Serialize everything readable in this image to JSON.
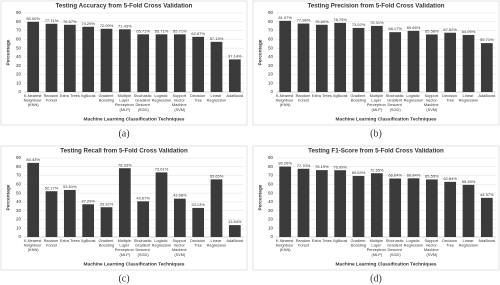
{
  "chart_data": [
    {
      "type": "bar",
      "title": "Testing Accuracy from 5-Fold Cross Validation",
      "x_label": "Machine Learning Classification Techniques",
      "y_label": "Percentage",
      "panel_label": "(a)",
      "categories": [
        "K-Nearest Neighbour (KNN)",
        "Random Forest",
        "Extra Trees",
        "XgBoost",
        "Gradient Boosting",
        "Multiple Layer Perceptron (MLP)",
        "Stochastic Gradient Descent (SGD)",
        "Logistic Regression",
        "Support Vector Machine (SVM)",
        "Decision Tree",
        "Linear Regression",
        "AdaBoost"
      ],
      "values": [
        80.0,
        77.71,
        76.57,
        74.29,
        72.0,
        71.43,
        65.71,
        65.71,
        65.71,
        62.87,
        57.15,
        37.14
      ],
      "value_labels": [
        "80.00%",
        "77.71%",
        "76.57%",
        "74.29%",
        "72.00%",
        "71.43%",
        "65.71%",
        "65.71%",
        "65.71%",
        "62.87%",
        "57.15%",
        "37.14%"
      ],
      "color": "#3b3b3b",
      "ylim": [
        0,
        90
      ],
      "yticks": [
        0,
        10,
        20,
        30,
        40,
        50,
        60,
        70,
        80,
        90
      ],
      "grid": true
    },
    {
      "type": "bar",
      "title": "Testing Precision from 5-Fold Cross Validation",
      "x_label": "Machine Learning Classification Techniques",
      "y_label": "Percentage",
      "panel_label": "(b)",
      "categories": [
        "K-Nearest Neighbour (KNN)",
        "Random Forest",
        "Extra Trees",
        "XgBoost",
        "Gradient Boosting",
        "Multiple Layer Perceptron (MLP)",
        "Stochastic Gradient Descent (SGD)",
        "Logistic Regression",
        "Support Vector Machine (SVM)",
        "Decision Tree",
        "Linear Regression",
        "AdaBoost"
      ],
      "values": [
        81.07,
        77.98,
        76.6,
        78.75,
        73.02,
        75.31,
        68.17,
        69.66,
        65.58,
        67.52,
        64.99,
        55.71
      ],
      "value_labels": [
        "81.07%",
        "77.98%",
        "76.60%",
        "78.75%",
        "73.02%",
        "75.31%",
        "68.17%",
        "69.66%",
        "65.58%",
        "67.52%",
        "64.99%",
        "55.71%"
      ],
      "color": "#3b3b3b",
      "ylim": [
        0,
        90
      ],
      "yticks": [
        0,
        10,
        20,
        30,
        40,
        50,
        60,
        70,
        80,
        90
      ],
      "grid": true
    },
    {
      "type": "bar",
      "title": "Testing Recall from 5-Fold Cross Validation",
      "x_label": "Machine Learning Classification Techniques",
      "y_label": "Percentage",
      "panel_label": "(c)",
      "categories": [
        "K-Nearest Neighbour (KNN)",
        "Random Forest",
        "Extra Trees",
        "XgBoost",
        "Gradient Boosting",
        "Multiple Layer Perceptron (MLP)",
        "Stochastic Gradient Descent (SGD)",
        "Logistic Regression",
        "Support Vector Machine (SVM)",
        "Decision Tree",
        "Linear Regression",
        "AdaBoost"
      ],
      "values": [
        84.43,
        52.17,
        53.61,
        37.29,
        33.92,
        78.33,
        40.67,
        73.61,
        43.68,
        33.13,
        65.65,
        13.54
      ],
      "value_labels": [
        "84.43%",
        "52.17%",
        "53.61%",
        "37.29%",
        "33.92%",
        "78.33%",
        "40.67%",
        "73.61%",
        "43.68%",
        "33.13%",
        "65.65%",
        "13.54%"
      ],
      "color": "#3b3b3b",
      "ylim": [
        0,
        90
      ],
      "yticks": [
        0,
        10,
        20,
        30,
        40,
        50,
        60,
        70,
        80,
        90
      ],
      "grid": true
    },
    {
      "type": "bar",
      "title": "Testing F1-Score from 5-Fold Cross Validation",
      "x_label": "Machine Learning Classification Techniques",
      "y_label": "Percentage",
      "panel_label": "(d)",
      "categories": [
        "K-Nearest Neighbour (KNN)",
        "Random Forest",
        "Extra Trees",
        "XgBoost",
        "Gradient Boosting",
        "Multiple Layer Perceptron (MLP)",
        "Stochastic Gradient Descent (SGD)",
        "Logistic Regression",
        "Support Vector Machine (SVM)",
        "Decision Tree",
        "Linear Regression",
        "AdaBoost"
      ],
      "values": [
        80.26,
        77.7,
        76.19,
        76.09,
        69.53,
        72.65,
        66.64,
        66.84,
        65.55,
        62.84,
        59.39,
        44.57
      ],
      "value_labels": [
        "80.26%",
        "77.70%",
        "76.19%",
        "76.09%",
        "69.53%",
        "72.65%",
        "66.64%",
        "66.84%",
        "65.55%",
        "62.84%",
        "59.39%",
        "44.57%"
      ],
      "color": "#3b3b3b",
      "ylim": [
        0,
        90
      ],
      "yticks": [
        0,
        10,
        20,
        30,
        40,
        50,
        60,
        70,
        80,
        90
      ],
      "grid": true
    }
  ]
}
